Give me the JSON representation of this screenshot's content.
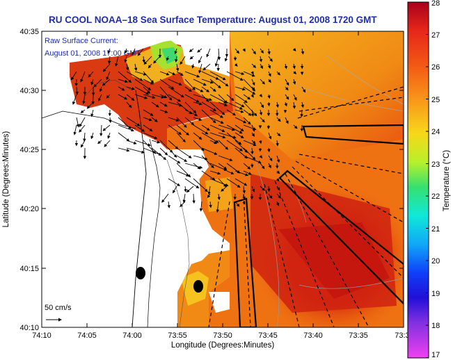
{
  "title": "RU COOL  NOAA–18  Sea Surface Temperature:  August 01, 2008 1720 GMT",
  "current_legend": {
    "line1": "Raw Surface Current:",
    "line2": "August 01, 2008 17:00 GMT",
    "scale_label": "50 cm/s"
  },
  "axes": {
    "xlabel": "Longitude (Degrees:Minutes)",
    "ylabel": "Latitude (Degrees:Minutes)",
    "x_ticks": [
      "74:10",
      "74:05",
      "74:00",
      "73:55",
      "73:50",
      "73:45",
      "73:40",
      "73:35",
      "73:3"
    ],
    "y_ticks": [
      "40:35",
      "40:30",
      "40:25",
      "40:20",
      "40:15",
      "40:10"
    ]
  },
  "colorbar": {
    "label": "Temperature (°C)",
    "ticks": [
      "28",
      "27",
      "26",
      "25",
      "24",
      "23",
      "22",
      "21",
      "20",
      "19",
      "18",
      "17"
    ],
    "min": 17,
    "max": 28
  },
  "colors": {
    "title_blue": "#1f2ea8",
    "land": "#ffffff",
    "deep_red": "#c21a10",
    "warm_orange": "#ef7a10"
  }
}
